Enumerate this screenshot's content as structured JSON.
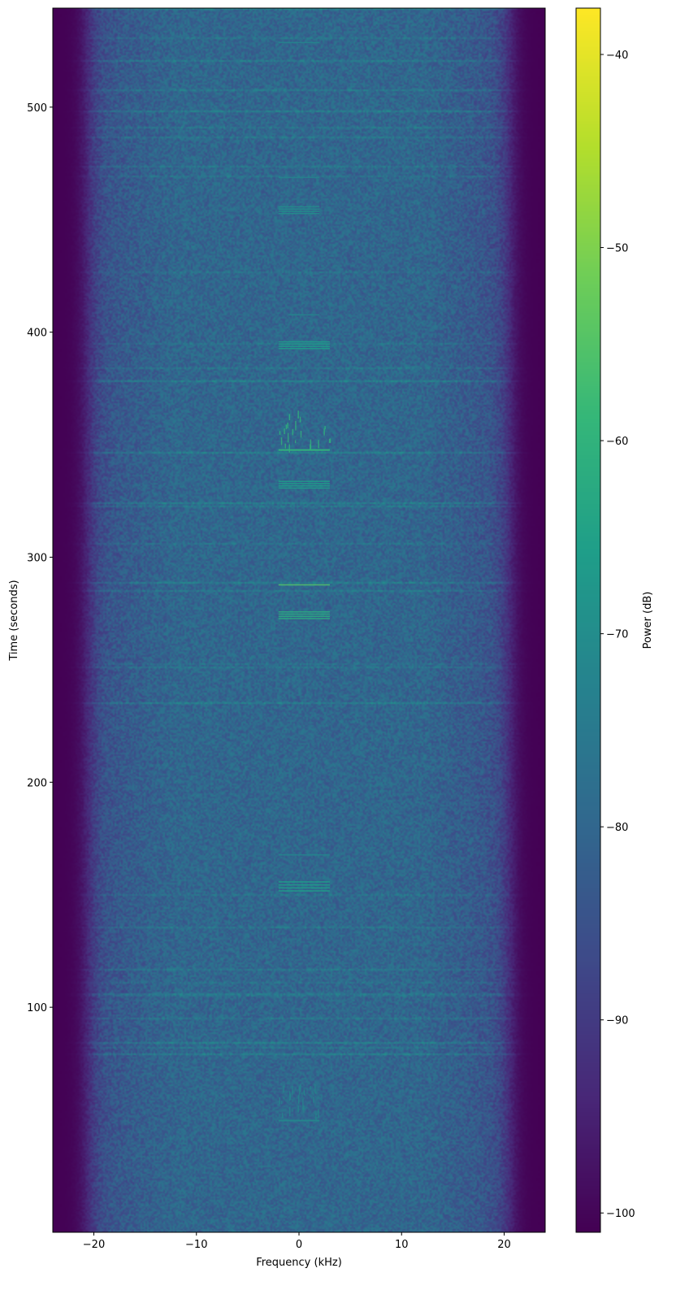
{
  "chart_data": {
    "type": "heatmap",
    "subtype": "spectrogram",
    "xlabel": "Frequency (kHz)",
    "ylabel": "Time (seconds)",
    "xlim": [
      -24,
      24
    ],
    "ylim": [
      0,
      544
    ],
    "x_ticks": [
      -20,
      -10,
      0,
      10,
      20
    ],
    "x_tick_labels": [
      "−20",
      "−10",
      "0",
      "10",
      "20"
    ],
    "y_ticks": [
      100,
      200,
      300,
      400,
      500
    ],
    "y_tick_labels": [
      "100",
      "200",
      "300",
      "400",
      "500"
    ],
    "colormap": "viridis",
    "colorbar": {
      "label": "Power (dB)",
      "range": [
        -101,
        -37.6
      ],
      "ticks": [
        -40,
        -50,
        -60,
        -70,
        -80,
        -90,
        -100
      ],
      "tick_labels": [
        "−40",
        "−50",
        "−60",
        "−70",
        "−80",
        "−90",
        "−100"
      ]
    },
    "background_power_db": -80,
    "band_edge_khz": 22,
    "floor_power_db": -101,
    "events": [
      {
        "t0": 50,
        "t1": 64,
        "f0": -2,
        "f1": 2,
        "power_db": -72,
        "kind": "burst"
      },
      {
        "t0": 152,
        "t1": 156,
        "f0": -2,
        "f1": 3,
        "power_db": -66,
        "kind": "tones"
      },
      {
        "t0": 168,
        "t1": 168.6,
        "f0": -2,
        "f1": 3,
        "power_db": -72,
        "kind": "line"
      },
      {
        "t0": 273,
        "t1": 276,
        "f0": -2,
        "f1": 3,
        "power_db": -62,
        "kind": "tones"
      },
      {
        "t0": 288,
        "t1": 288.8,
        "f0": -2,
        "f1": 3,
        "power_db": -55,
        "kind": "line"
      },
      {
        "t0": 331,
        "t1": 334,
        "f0": -2,
        "f1": 3,
        "power_db": -66,
        "kind": "tones"
      },
      {
        "t0": 348,
        "t1": 364,
        "f0": -2,
        "f1": 3,
        "power_db": -60,
        "kind": "burst"
      },
      {
        "t0": 393,
        "t1": 396,
        "f0": -2,
        "f1": 3,
        "power_db": -66,
        "kind": "tones"
      },
      {
        "t0": 408,
        "t1": 408.6,
        "f0": -1,
        "f1": 2,
        "power_db": -72,
        "kind": "line"
      },
      {
        "t0": 453,
        "t1": 456,
        "f0": -2,
        "f1": 2,
        "power_db": -70,
        "kind": "tones"
      },
      {
        "t0": 469,
        "t1": 469.5,
        "f0": -2,
        "f1": 2,
        "power_db": -72,
        "kind": "line"
      },
      {
        "t0": 529,
        "t1": 529.5,
        "f0": -2,
        "f1": 2,
        "power_db": -72,
        "kind": "line"
      }
    ]
  }
}
